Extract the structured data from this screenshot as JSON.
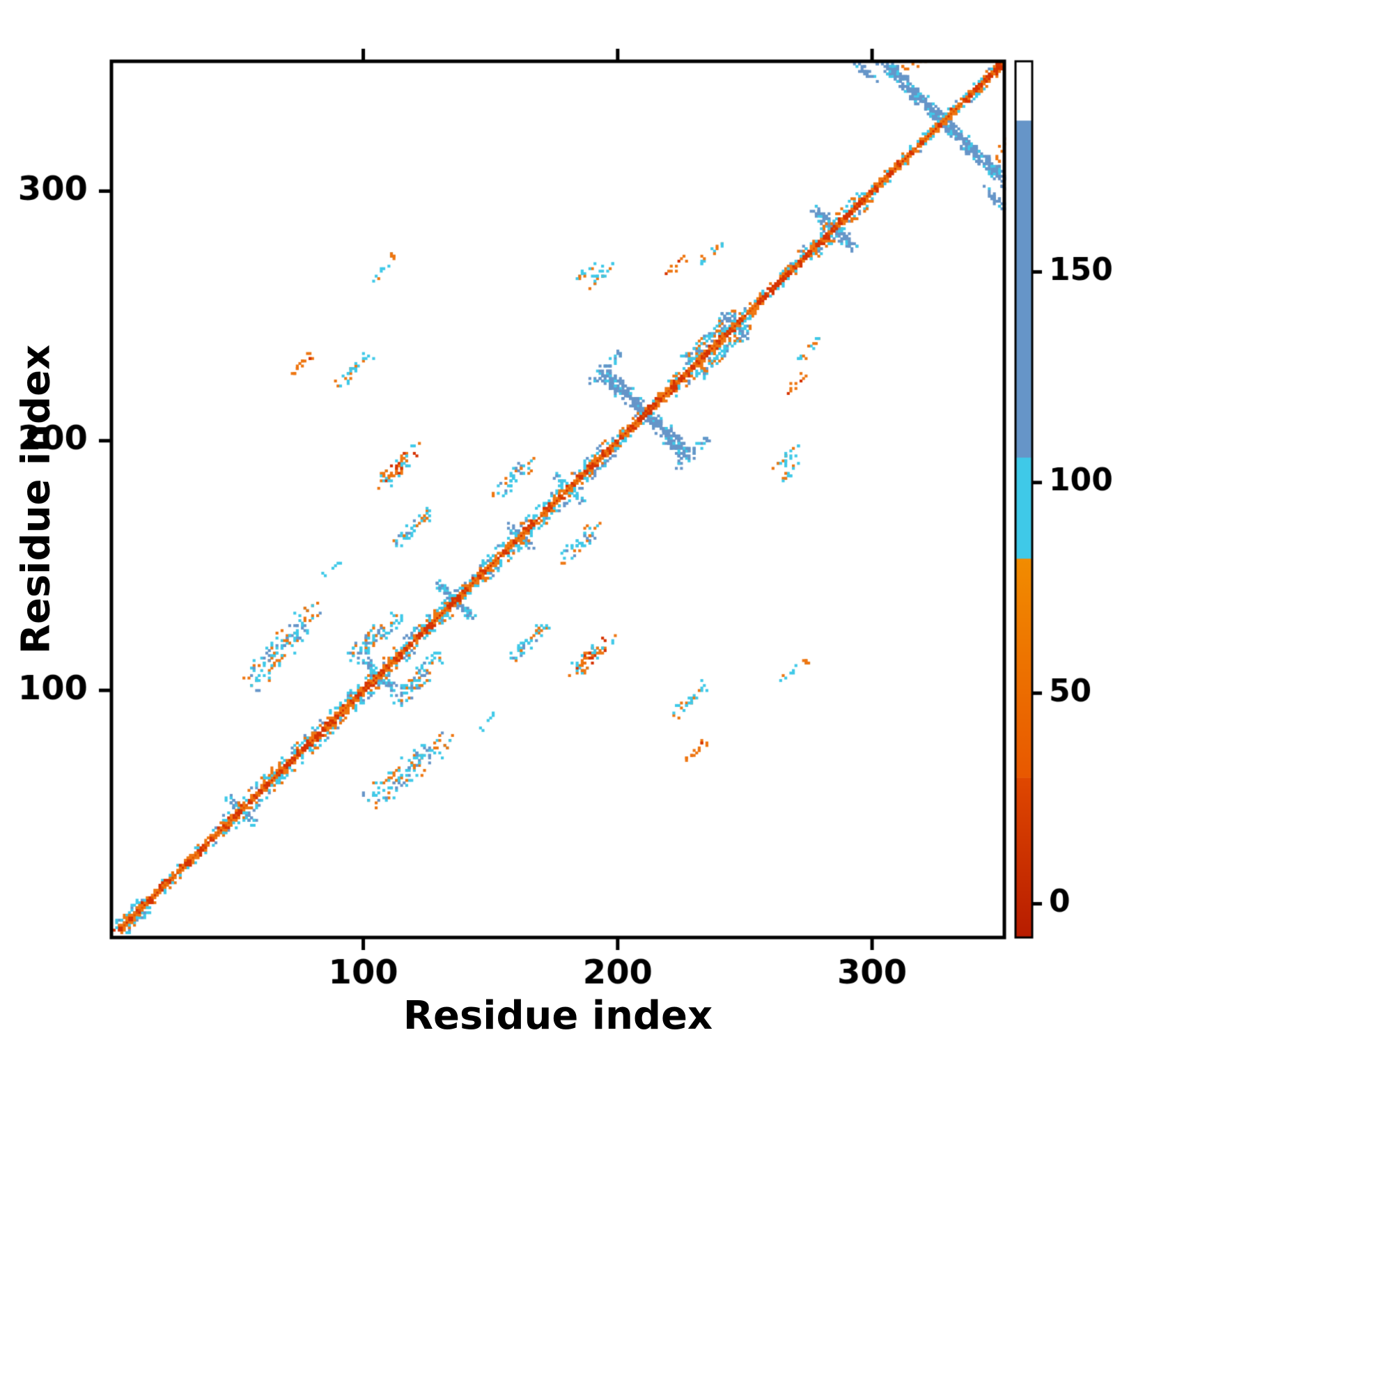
{
  "chart_data": {
    "type": "heatmap",
    "subtype": "protein-contact-map",
    "title": "",
    "xlabel": "Residue index",
    "ylabel": "Residue index",
    "xlim": [
      1,
      352
    ],
    "ylim": [
      1,
      352
    ],
    "xticks": [
      100,
      200,
      300
    ],
    "yticks": [
      100,
      200,
      300
    ],
    "grid": false,
    "palette": {
      "red": "#d63200",
      "orange": "#ee7611",
      "cyan": "#3fc9e8",
      "blue": "#6695c8"
    },
    "colorbar": {
      "position": "right",
      "ticks": [
        0,
        50,
        100,
        150
      ],
      "vmin": -8,
      "vmax": 200,
      "segments": [
        {
          "from": -8,
          "to": 30,
          "color_from": "#b71c00",
          "color_to": "#e04800"
        },
        {
          "from": 30,
          "to": 82,
          "color_from": "#e85800",
          "color_to": "#f28c00"
        },
        {
          "from": 82,
          "to": 106,
          "color": "#3fc9e8"
        },
        {
          "from": 106,
          "to": 186,
          "color": "#6695c8"
        },
        {
          "from": 186,
          "to": 200,
          "color": "#ffffff"
        }
      ]
    },
    "diagonal": {
      "start": 4,
      "end": 351,
      "wide_segments": [
        [
          50,
          140
        ],
        [
          148,
          200
        ],
        [
          222,
          250
        ],
        [
          276,
          300
        ]
      ]
    },
    "clusters": [
      {
        "x0": 4,
        "y0": 7,
        "x1": 12,
        "y1": 15,
        "spread": 2,
        "n": 20,
        "colors": {
          "cyan": 0.6,
          "blue": 0.2,
          "orange": 0.2
        }
      },
      {
        "x0": 56,
        "y0": 103,
        "x1": 80,
        "y1": 132,
        "spread": 4,
        "n": 130,
        "colors": {
          "cyan": 0.5,
          "blue": 0.2,
          "orange": 0.3
        }
      },
      {
        "x0": 70,
        "y0": 225,
        "x1": 79,
        "y1": 234,
        "spread": 1.5,
        "n": 16,
        "colors": {
          "orange": 0.8,
          "red": 0.2
        }
      },
      {
        "x0": 107,
        "y0": 183,
        "x1": 121,
        "y1": 197,
        "spread": 2.5,
        "n": 60,
        "colors": {
          "orange": 0.5,
          "red": 0.25,
          "cyan": 0.25
        }
      },
      {
        "x0": 112,
        "y0": 157,
        "x1": 126,
        "y1": 172,
        "spread": 2,
        "n": 45,
        "colors": {
          "cyan": 0.7,
          "blue": 0.15,
          "orange": 0.15
        }
      },
      {
        "x0": 96,
        "y0": 113,
        "x1": 114,
        "y1": 130,
        "spread": 3,
        "n": 80,
        "colors": {
          "cyan": 0.55,
          "blue": 0.25,
          "orange": 0.2
        }
      },
      {
        "x0": 129,
        "y0": 143,
        "x1": 143,
        "y1": 129,
        "spread": 1.5,
        "n": 45,
        "colors": {
          "blue": 0.7,
          "cyan": 0.3
        }
      },
      {
        "x0": 152,
        "y0": 179,
        "x1": 166,
        "y1": 191,
        "spread": 2.5,
        "n": 45,
        "colors": {
          "cyan": 0.6,
          "blue": 0.2,
          "orange": 0.2
        }
      },
      {
        "x0": 183,
        "y0": 265,
        "x1": 193,
        "y1": 272,
        "spread": 1.5,
        "n": 12,
        "colors": {
          "cyan": 0.6,
          "orange": 0.4
        }
      },
      {
        "x0": 217,
        "y0": 266,
        "x1": 228,
        "y1": 273,
        "spread": 1.5,
        "n": 10,
        "colors": {
          "orange": 0.85,
          "red": 0.15
        }
      },
      {
        "x0": 190,
        "y0": 224,
        "x1": 201,
        "y1": 235,
        "spread": 1.5,
        "n": 30,
        "colors": {
          "blue": 0.6,
          "cyan": 0.4
        }
      },
      {
        "x0": 194,
        "y0": 227,
        "x1": 229,
        "y1": 194,
        "spread": 2.2,
        "n": 170,
        "colors": {
          "blue": 0.85,
          "cyan": 0.15
        }
      },
      {
        "x0": 227,
        "y0": 233,
        "x1": 246,
        "y1": 251,
        "spread": 2,
        "n": 60,
        "colors": {
          "cyan": 0.5,
          "orange": 0.35,
          "blue": 0.15
        }
      },
      {
        "x0": 277,
        "y0": 293,
        "x1": 293,
        "y1": 277,
        "spread": 1.8,
        "n": 55,
        "colors": {
          "blue": 0.75,
          "cyan": 0.25
        }
      },
      {
        "x0": 293,
        "y0": 352,
        "x1": 302,
        "y1": 344,
        "spread": 1.2,
        "n": 25,
        "colors": {
          "blue": 0.8,
          "cyan": 0.2
        }
      },
      {
        "x0": 305,
        "y0": 351,
        "x1": 351,
        "y1": 305,
        "spread": 2.2,
        "n": 220,
        "colors": {
          "blue": 0.8,
          "cyan": 0.2
        }
      },
      {
        "x0": 349,
        "y0": 311,
        "x1": 352,
        "y1": 320,
        "spread": 1,
        "n": 8,
        "colors": {
          "orange": 0.8,
          "red": 0.2
        }
      },
      {
        "x0": 349,
        "y0": 297,
        "x1": 352,
        "y1": 304,
        "spread": 1,
        "n": 6,
        "colors": {
          "blue": 1
        }
      },
      {
        "x0": 190,
        "y0": 262,
        "x1": 198,
        "y1": 270,
        "spread": 1.2,
        "n": 10,
        "colors": {
          "cyan": 0.8,
          "orange": 0.2
        }
      },
      {
        "x0": 90,
        "y0": 222,
        "x1": 102,
        "y1": 234,
        "spread": 2,
        "n": 26,
        "colors": {
          "cyan": 0.7,
          "orange": 0.3
        }
      },
      {
        "x0": 47,
        "y0": 57,
        "x1": 57,
        "y1": 47,
        "spread": 1.5,
        "n": 22,
        "colors": {
          "blue": 0.6,
          "cyan": 0.4
        }
      },
      {
        "x0": 100,
        "y0": 112,
        "x1": 112,
        "y1": 100,
        "spread": 1.5,
        "n": 32,
        "colors": {
          "blue": 0.5,
          "cyan": 0.5
        }
      },
      {
        "x0": 241,
        "y0": 251,
        "x1": 251,
        "y1": 241,
        "spread": 1.2,
        "n": 18,
        "colors": {
          "blue": 0.7,
          "cyan": 0.3
        }
      },
      {
        "x0": 157,
        "y0": 167,
        "x1": 167,
        "y1": 157,
        "spread": 1.2,
        "n": 16,
        "colors": {
          "blue": 0.6,
          "cyan": 0.4
        }
      },
      {
        "x0": 176,
        "y0": 186,
        "x1": 186,
        "y1": 176,
        "spread": 1.2,
        "n": 16,
        "colors": {
          "cyan": 0.7,
          "blue": 0.3
        }
      },
      {
        "x0": 262,
        "y0": 188,
        "x1": 271,
        "y1": 197,
        "spread": 1.2,
        "n": 12,
        "colors": {
          "cyan": 0.8,
          "orange": 0.2
        }
      },
      {
        "x0": 263,
        "y0": 103,
        "x1": 275,
        "y1": 112,
        "spread": 1.5,
        "n": 14,
        "colors": {
          "cyan": 0.7,
          "orange": 0.3
        }
      },
      {
        "x0": 270,
        "y0": 232,
        "x1": 280,
        "y1": 241,
        "spread": 1.5,
        "n": 14,
        "colors": {
          "cyan": 0.6,
          "orange": 0.4
        }
      },
      {
        "x0": 146,
        "y0": 84,
        "x1": 152,
        "y1": 90,
        "spread": 1,
        "n": 6,
        "colors": {
          "cyan": 1
        }
      }
    ]
  }
}
